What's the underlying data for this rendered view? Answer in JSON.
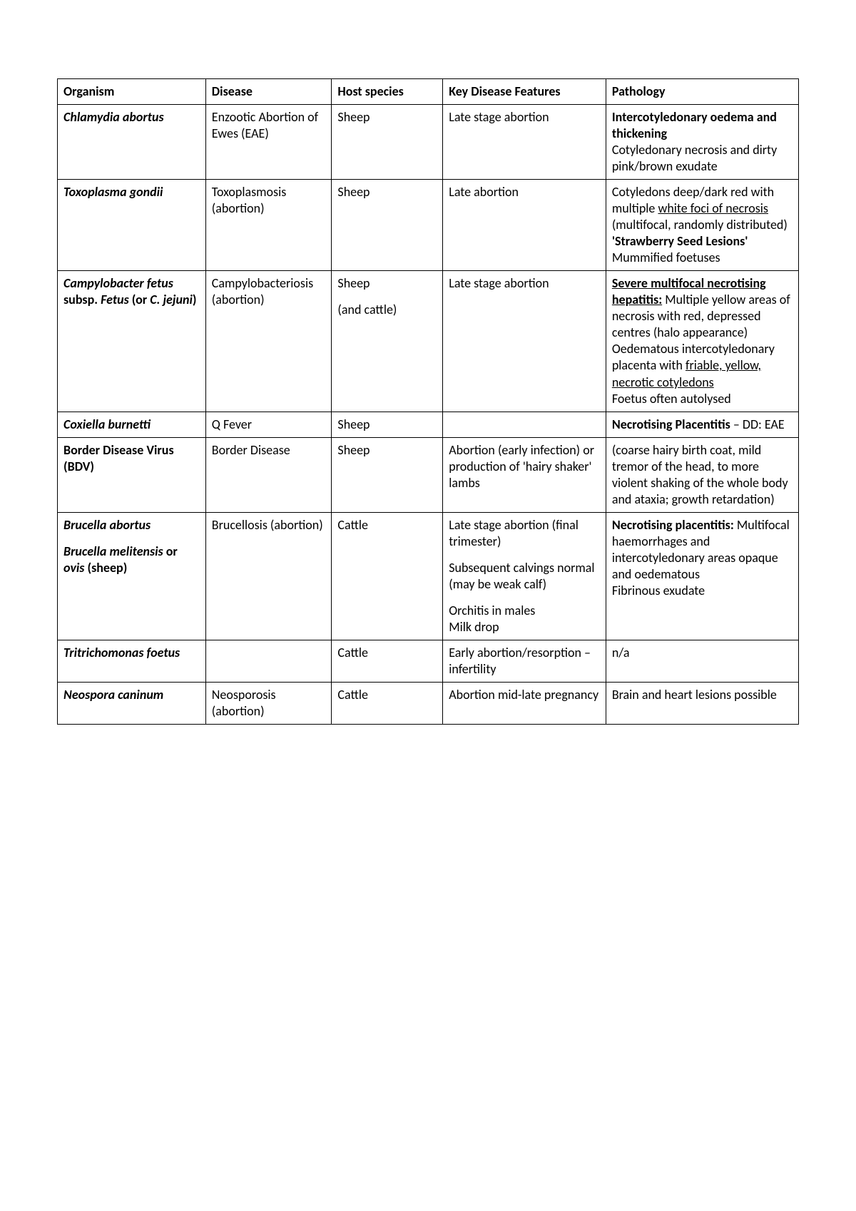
{
  "table": {
    "type": "table",
    "columns": [
      "Organism",
      "Disease",
      "Host species",
      "Key Disease Features",
      "Pathology"
    ],
    "col_widths_pct": [
      20,
      17,
      15,
      22,
      26
    ],
    "border_color": "#000000",
    "header_fontweight": 700,
    "cell_fontsize": 18,
    "rows": [
      {
        "organism": [
          {
            "t": "Chlamydia abortus",
            "b": true,
            "i": true
          }
        ],
        "disease": [
          {
            "t": "Enzootic Abortion of Ewes (EAE)"
          }
        ],
        "host": [
          {
            "t": "Sheep"
          }
        ],
        "features": [
          {
            "t": "Late stage abortion"
          }
        ],
        "pathology": [
          {
            "t": "Intercotyledonary oedema and thickening",
            "b": true,
            "block": true
          },
          {
            "t": "Cotyledonary necrosis and dirty pink/brown exudate",
            "block": true
          }
        ]
      },
      {
        "organism": [
          {
            "t": "Toxoplasma gondii",
            "b": true,
            "i": true
          }
        ],
        "disease": [
          {
            "t": "Toxoplasmosis (abortion)"
          }
        ],
        "host": [
          {
            "t": "Sheep"
          }
        ],
        "features": [
          {
            "t": "Late abortion"
          }
        ],
        "pathology": [
          {
            "t": "Cotyledons deep/dark red with multiple "
          },
          {
            "t": "white foci of necrosis ",
            "u": true
          },
          {
            "t": "(multifocal, randomly distributed)",
            "block_after": true
          },
          {
            "t": "'Strawberry Seed Lesions'",
            "b": true,
            "block": true
          },
          {
            "t": "Mummified foetuses",
            "block": true
          }
        ]
      },
      {
        "organism": [
          {
            "t": "Campylobacter fetus ",
            "b": true,
            "i": true
          },
          {
            "t": "subsp. ",
            "b": true
          },
          {
            "t": "Fetus ",
            "b": true,
            "i": true
          },
          {
            "t": "(or ",
            "b": true
          },
          {
            "t": "C. jejuni",
            "b": true,
            "i": true
          },
          {
            "t": ")",
            "b": true
          }
        ],
        "disease": [
          {
            "t": "Campylobacteriosis (abortion)"
          }
        ],
        "host": [
          {
            "t": "Sheep",
            "para": true
          },
          {
            "t": "(and cattle)"
          }
        ],
        "features": [
          {
            "t": "Late stage abortion"
          }
        ],
        "pathology": [
          {
            "t": "Severe multifocal necrotising hepatitis:",
            "b": true,
            "u": true
          },
          {
            "t": " Multiple yellow areas of necrosis with red, depressed centres (halo appearance)",
            "block_after": true
          },
          {
            "t": "Oedematous intercotyledonary placenta with "
          },
          {
            "t": "friable, yellow, necrotic cotyledons",
            "u": true,
            "block_after": true
          },
          {
            "t": "Foetus often autolysed",
            "block": true
          }
        ]
      },
      {
        "organism": [
          {
            "t": "Coxiella burnetti",
            "b": true,
            "i": true
          }
        ],
        "disease": [
          {
            "t": "Q Fever"
          }
        ],
        "host": [
          {
            "t": "Sheep"
          }
        ],
        "features": [],
        "pathology": [
          {
            "t": "Necrotising Placentitis",
            "b": true
          },
          {
            "t": " – DD: EAE"
          }
        ]
      },
      {
        "organism": [
          {
            "t": "Border Disease Virus (BDV)",
            "b": true
          }
        ],
        "disease": [
          {
            "t": "Border Disease"
          }
        ],
        "host": [
          {
            "t": "Sheep"
          }
        ],
        "features": [
          {
            "t": "Abortion (early infection) or production of 'hairy shaker' lambs"
          }
        ],
        "pathology": [
          {
            "t": "(coarse hairy birth coat, mild tremor of the head, to more violent shaking of the whole body and ataxia; growth retardation)"
          }
        ]
      },
      {
        "organism": [
          {
            "t": "Brucella abortus",
            "b": true,
            "i": true,
            "para": true
          },
          {
            "t": "Brucella melitensis ",
            "b": true,
            "i": true
          },
          {
            "t": "or ",
            "b": true
          },
          {
            "t": "ovis ",
            "b": true,
            "i": true
          },
          {
            "t": "(sheep)",
            "b": true
          }
        ],
        "disease": [
          {
            "t": "Brucellosis (abortion)"
          }
        ],
        "host": [
          {
            "t": "Cattle"
          }
        ],
        "features": [
          {
            "t": "Late stage abortion (final trimester)",
            "para": true
          },
          {
            "t": "Subsequent calvings normal (may be weak calf)",
            "para": true
          },
          {
            "t": "Orchitis in males",
            "block": true
          },
          {
            "t": "Milk drop",
            "block": true
          }
        ],
        "pathology": [
          {
            "t": "Necrotising placentitis:",
            "b": true
          },
          {
            "t": " Multifocal haemorrhages and intercotyledonary areas opaque and oedematous",
            "block_after": true
          },
          {
            "t": "Fibrinous exudate",
            "block": true
          }
        ]
      },
      {
        "organism": [
          {
            "t": "Tritrichomonas foetus",
            "b": true,
            "i": true
          }
        ],
        "disease": [],
        "host": [
          {
            "t": "Cattle"
          }
        ],
        "features": [
          {
            "t": "Early abortion/resorption – infertility"
          }
        ],
        "pathology": [
          {
            "t": "n/a"
          }
        ]
      },
      {
        "organism": [
          {
            "t": "Neospora caninum",
            "b": true,
            "i": true
          }
        ],
        "disease": [
          {
            "t": "Neosporosis (abortion)"
          }
        ],
        "host": [
          {
            "t": "Cattle"
          }
        ],
        "features": [
          {
            "t": "Abortion mid-late pregnancy"
          }
        ],
        "pathology": [
          {
            "t": "Brain and heart lesions possible"
          }
        ]
      }
    ]
  }
}
